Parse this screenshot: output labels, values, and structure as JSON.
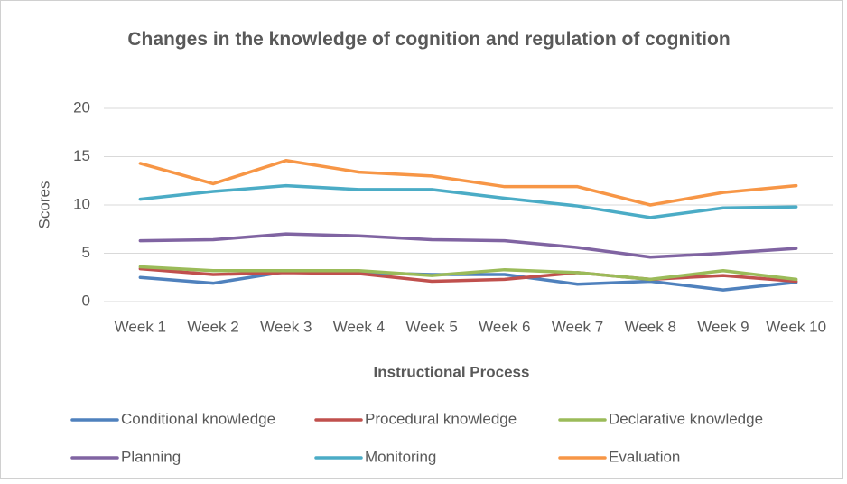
{
  "chart_data": {
    "type": "line",
    "title": "Changes in the knowledge of cognition and regulation of cognition",
    "x_label": "Instructional Process",
    "y_label": "Scores",
    "categories": [
      "Week 1",
      "Week 2",
      "Week 3",
      "Week 4",
      "Week 5",
      "Week 6",
      "Week 7",
      "Week 8",
      "Week 9",
      "Week 10"
    ],
    "series": [
      {
        "name": "Conditional knowledge",
        "color": "#4f81bd",
        "values": [
          2.5,
          1.9,
          3.1,
          3.0,
          2.8,
          2.8,
          1.8,
          2.1,
          1.2,
          2.0
        ]
      },
      {
        "name": "Procedural knowledge",
        "color": "#c0504d",
        "values": [
          3.4,
          2.8,
          3.0,
          2.9,
          2.1,
          2.3,
          3.0,
          2.3,
          2.7,
          2.1
        ]
      },
      {
        "name": "Declarative knowledge",
        "color": "#9bbb59",
        "values": [
          3.6,
          3.2,
          3.2,
          3.2,
          2.7,
          3.3,
          3.0,
          2.3,
          3.2,
          2.3
        ]
      },
      {
        "name": "Planning",
        "color": "#8064a2",
        "values": [
          6.3,
          6.4,
          7.0,
          6.8,
          6.4,
          6.3,
          5.6,
          4.6,
          5.0,
          5.5
        ]
      },
      {
        "name": "Monitoring",
        "color": "#4bacc6",
        "values": [
          10.6,
          11.4,
          12.0,
          11.6,
          11.6,
          10.7,
          9.9,
          8.7,
          9.7,
          9.8
        ]
      },
      {
        "name": "Evaluation",
        "color": "#f79646",
        "values": [
          14.3,
          12.2,
          14.6,
          13.4,
          13.0,
          11.9,
          11.9,
          10.0,
          11.3,
          12.0
        ]
      }
    ],
    "ylim": [
      0,
      20
    ],
    "yticks": [
      0,
      5,
      10,
      15,
      20
    ],
    "grid": true,
    "legend": "bottom"
  }
}
